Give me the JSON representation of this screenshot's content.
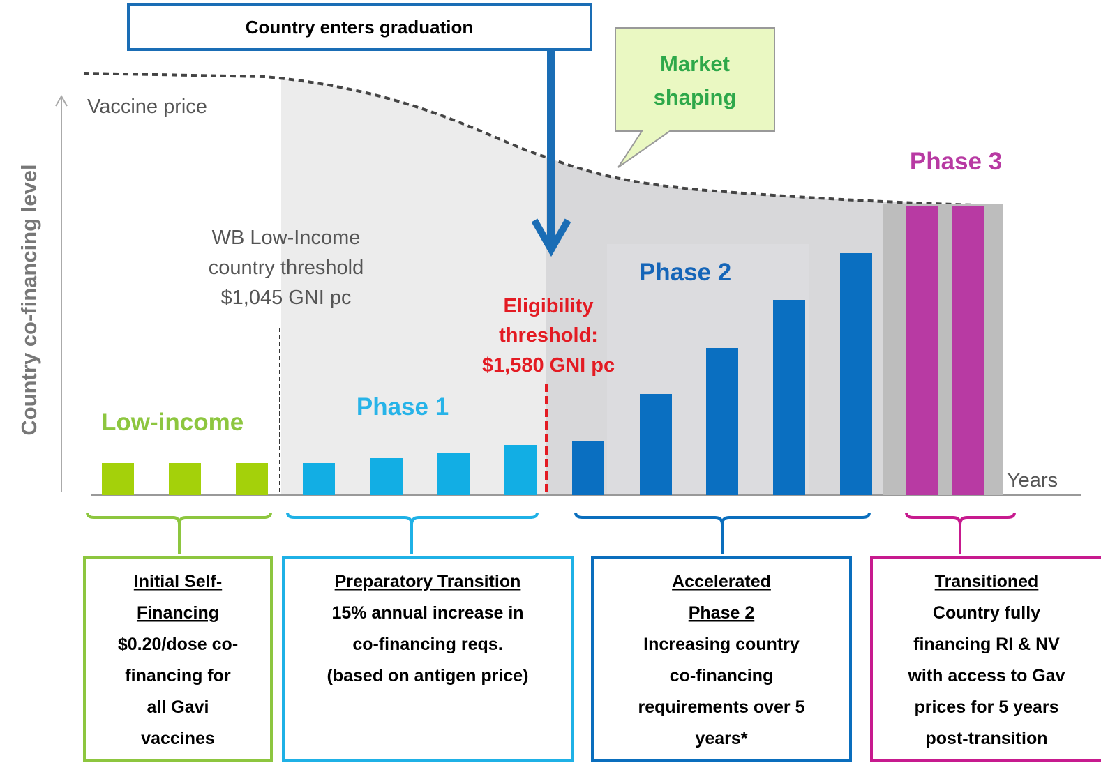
{
  "callout": "Country enters graduation",
  "market_shaping": [
    "Market",
    "shaping"
  ],
  "y_axis_label": "Country co-financing level",
  "price_label": "Vaccine price",
  "x_axis_label": "Years",
  "phases": {
    "low_income": "Low-income",
    "phase1": "Phase 1",
    "phase2": "Phase 2",
    "phase3": "Phase 3"
  },
  "thresholds": {
    "low_income": [
      "WB Low-Income",
      "country threshold",
      "$1,045 GNI pc"
    ],
    "eligibility": [
      "Eligibility",
      "threshold:",
      "$1,580 GNI pc"
    ]
  },
  "boxes": [
    {
      "title": [
        "Initial Self-",
        "Financing"
      ],
      "body": [
        "$0.20/dose co-",
        "financing for",
        "all Gavi",
        "vaccines"
      ]
    },
    {
      "title": [
        "Preparatory Transition"
      ],
      "body": [
        "15% annual increase in",
        "co-financing reqs.",
        "(based on antigen price)"
      ]
    },
    {
      "title": [
        "Accelerated",
        "Phase 2"
      ],
      "body": [
        "Increasing country",
        "co-financing",
        "requirements over 5",
        "years*"
      ]
    },
    {
      "title": [
        "Transitioned"
      ],
      "body": [
        "Country fully",
        "financing RI & NV",
        "with access to Gav",
        "prices for 5 years",
        "post-transition"
      ]
    }
  ]
}
